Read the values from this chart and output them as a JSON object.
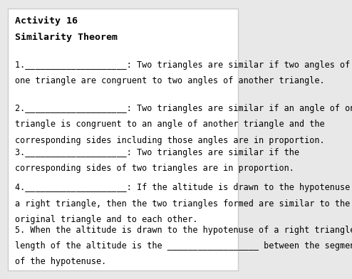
{
  "title1": "Activity 16",
  "title2": "Similarity Theorem",
  "background_color": "#e8e8e8",
  "box_color": "#ffffff",
  "text_color": "#000000",
  "font_family": "monospace",
  "items": [
    {
      "number": "1.",
      "blank": "____________________",
      "colon": ":",
      "text": " Two triangles are similar if two angles of\none triangle are congruent to two angles of another triangle."
    },
    {
      "number": "2.",
      "blank": "____________________",
      "colon": ":",
      "text": " Two triangles are similar if an angle of one\ntriangle is congruent to an angle of another triangle and the\ncorresponding sides including those angles are in proportion."
    },
    {
      "number": "3.",
      "blank": "____________________",
      "colon": ":",
      "text": " Two triangles are similar if the\ncorresponding sides of two triangles are in proportion."
    },
    {
      "number": "4.",
      "blank": "____________________",
      "colon": ":",
      "text": " If the altitude is drawn to the hypotenuse of\na right triangle, then the two triangles formed are similar to the\noriginal triangle and to each other."
    }
  ],
  "item5": "5. When the altitude is drawn to the hypotenuse of a right triangle, the\nlength of the altitude is the __________________ between the segments\nof the hypotenuse.",
  "title_fontsize": 9.5,
  "body_fontsize": 8.5
}
